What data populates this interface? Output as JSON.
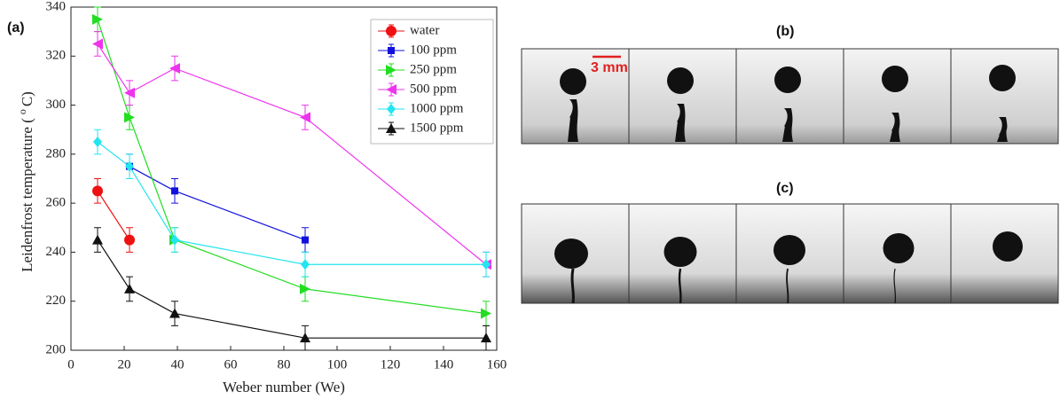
{
  "chart_data": {
    "type": "line",
    "panel_label": "(a)",
    "xlabel": "Weber number (We)",
    "ylabel": {
      "text": "Leidenfrost temperature (",
      "sup": "o",
      "unit": "C)"
    },
    "xlim": [
      0,
      160
    ],
    "xticks": [
      0,
      20,
      40,
      60,
      80,
      100,
      120,
      140,
      160
    ],
    "ylim": [
      200,
      340
    ],
    "yticks": [
      200,
      220,
      240,
      260,
      280,
      300,
      320,
      340
    ],
    "legend": "top-right",
    "series": [
      {
        "name": "water",
        "color": "#ee1111",
        "marker": "circle",
        "x": [
          10,
          22
        ],
        "values": [
          265,
          245
        ],
        "errors": [
          5,
          5
        ]
      },
      {
        "name": "100 ppm",
        "color": "#1111dd",
        "marker": "square",
        "x": [
          22,
          39,
          88
        ],
        "values": [
          275,
          265,
          245
        ],
        "errors": [
          5,
          5,
          5
        ]
      },
      {
        "name": "250 ppm",
        "color": "#22dd22",
        "marker": "triangle-right",
        "x": [
          10,
          22,
          39,
          88,
          156
        ],
        "values": [
          335,
          295,
          245,
          225,
          215
        ],
        "errors": [
          5,
          5,
          5,
          5,
          5
        ]
      },
      {
        "name": "500 ppm",
        "color": "#ee33ee",
        "marker": "triangle-left",
        "x": [
          10,
          22,
          39,
          88,
          156
        ],
        "values": [
          325,
          305,
          315,
          295,
          235
        ],
        "errors": [
          5,
          5,
          5,
          5,
          5
        ]
      },
      {
        "name": "1000 ppm",
        "color": "#22e5f0",
        "marker": "diamond",
        "x": [
          10,
          22,
          39,
          88,
          156
        ],
        "values": [
          285,
          275,
          245,
          235,
          235
        ],
        "errors": [
          5,
          5,
          5,
          5,
          5
        ]
      },
      {
        "name": "1500 ppm",
        "color": "#111111",
        "marker": "triangle-up",
        "x": [
          10,
          22,
          39,
          88,
          156
        ],
        "values": [
          245,
          225,
          215,
          205,
          205
        ],
        "errors": [
          5,
          5,
          5,
          5,
          5
        ]
      }
    ]
  },
  "panels": {
    "b": {
      "label": "(b)",
      "scale_label": "3 mm"
    },
    "c": {
      "label": "(c)"
    }
  }
}
